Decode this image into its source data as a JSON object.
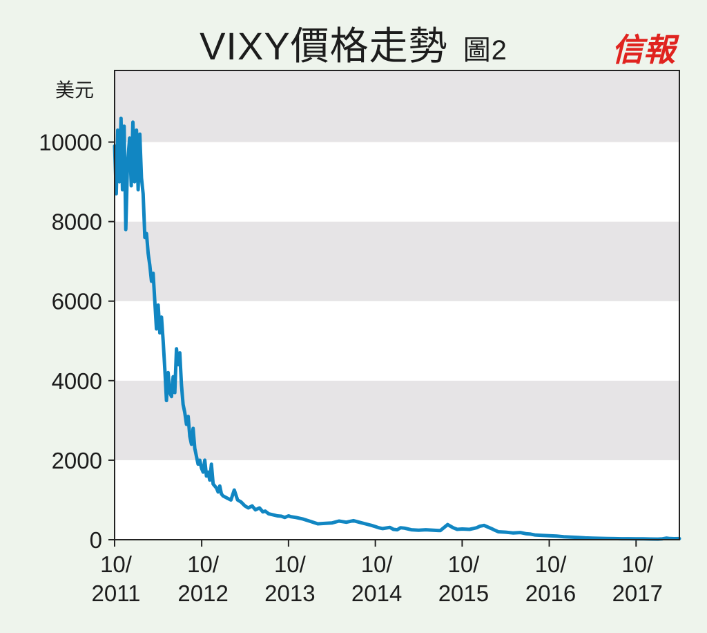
{
  "header": {
    "title": "VIXY價格走勢",
    "figure_label": "圖2",
    "logo_text": "信報"
  },
  "colors": {
    "background": "#eef4ec",
    "band_gray": "#e6e4e6",
    "band_white": "#ffffff",
    "line": "#1186c2",
    "logo": "#e0231f"
  },
  "chart_data": {
    "type": "line",
    "title": "VIXY價格走勢",
    "ylabel": "美元",
    "xlabel": "",
    "ylim": [
      0,
      11800
    ],
    "xlim": [
      "2011-10",
      "2018-04"
    ],
    "grid": false,
    "alternating_bands": true,
    "yticks": [
      0,
      2000,
      4000,
      6000,
      8000,
      10000
    ],
    "ytick_labels": [
      "0",
      "2000",
      "4000",
      "6000",
      "8000",
      "10000"
    ],
    "xticks": [
      "2011-10",
      "2012-10",
      "2013-10",
      "2014-10",
      "2015-10",
      "2016-10",
      "2017-10"
    ],
    "xtick_labels": [
      [
        "10/",
        "2011"
      ],
      [
        "10/",
        "2012"
      ],
      [
        "10/",
        "2013"
      ],
      [
        "10/",
        "2014"
      ],
      [
        "10/",
        "2015"
      ],
      [
        "10/",
        "2016"
      ],
      [
        "10/",
        "2017"
      ]
    ],
    "series": [
      {
        "x": [
          "2011-10-01",
          "2011-10-08",
          "2011-10-14",
          "2011-10-21",
          "2011-10-28",
          "2011-11-03",
          "2011-11-10",
          "2011-11-17",
          "2011-11-24",
          "2011-12-03",
          "2011-12-10",
          "2011-12-17",
          "2011-12-24",
          "2012-01-01",
          "2012-01-08",
          "2012-01-15",
          "2012-01-22",
          "2012-01-29",
          "2012-02-05",
          "2012-02-12",
          "2012-02-19",
          "2012-02-26",
          "2012-03-04",
          "2012-03-11",
          "2012-03-18",
          "2012-03-25",
          "2012-04-01",
          "2012-04-08",
          "2012-04-15",
          "2012-04-22",
          "2012-04-29",
          "2012-05-06",
          "2012-05-13",
          "2012-05-20",
          "2012-05-27",
          "2012-06-03",
          "2012-06-10",
          "2012-06-17",
          "2012-06-24",
          "2012-07-01",
          "2012-07-08",
          "2012-07-15",
          "2012-07-22",
          "2012-07-29",
          "2012-08-05",
          "2012-08-12",
          "2012-08-19",
          "2012-08-26",
          "2012-09-02",
          "2012-09-09",
          "2012-09-16",
          "2012-09-23",
          "2012-09-30",
          "2012-10-07",
          "2012-10-14",
          "2012-10-21",
          "2012-10-28",
          "2012-11-04",
          "2012-11-11",
          "2012-11-18",
          "2012-11-25",
          "2012-12-02",
          "2012-12-09",
          "2012-12-16",
          "2012-12-23",
          "2012-12-30",
          "2013-01-15",
          "2013-02-01",
          "2013-02-15",
          "2013-03-01",
          "2013-03-15",
          "2013-04-01",
          "2013-04-15",
          "2013-05-01",
          "2013-05-15",
          "2013-06-01",
          "2013-06-15",
          "2013-06-25",
          "2013-07-10",
          "2013-08-01",
          "2013-08-15",
          "2013-09-01",
          "2013-09-15",
          "2013-10-01",
          "2013-10-10",
          "2013-11-01",
          "2013-12-01",
          "2014-01-01",
          "2014-02-01",
          "2014-03-01",
          "2014-04-01",
          "2014-05-01",
          "2014-06-01",
          "2014-07-01",
          "2014-08-01",
          "2014-08-20",
          "2014-09-15",
          "2014-10-01",
          "2014-10-15",
          "2014-11-01",
          "2014-12-01",
          "2014-12-16",
          "2015-01-01",
          "2015-01-15",
          "2015-02-01",
          "2015-03-01",
          "2015-04-01",
          "2015-05-01",
          "2015-06-01",
          "2015-07-01",
          "2015-08-01",
          "2015-08-24",
          "2015-09-10",
          "2015-10-01",
          "2015-11-01",
          "2015-12-01",
          "2015-12-15",
          "2016-01-01",
          "2016-02-01",
          "2016-02-15",
          "2016-03-01",
          "2016-04-01",
          "2016-05-01",
          "2016-06-01",
          "2016-06-27",
          "2016-07-15",
          "2016-08-01",
          "2016-09-01",
          "2016-10-01",
          "2016-11-01",
          "2016-12-01",
          "2017-01-01",
          "2017-02-01",
          "2017-03-01",
          "2017-04-01",
          "2017-05-01",
          "2017-06-01",
          "2017-07-01",
          "2017-08-01",
          "2017-09-01",
          "2017-10-01",
          "2017-11-01",
          "2017-12-01",
          "2018-01-01",
          "2018-01-20",
          "2018-02-06",
          "2018-02-20",
          "2018-03-10",
          "2018-04-01"
        ],
        "values": [
          9900,
          8700,
          10300,
          9000,
          10600,
          8800,
          10400,
          7800,
          9400,
          10100,
          8900,
          10500,
          9000,
          10300,
          8800,
          10200,
          9100,
          8700,
          7600,
          7700,
          7200,
          6900,
          6500,
          6700,
          6000,
          5300,
          5900,
          5200,
          5600,
          5000,
          4300,
          3500,
          4200,
          3700,
          3600,
          4100,
          3700,
          4800,
          4400,
          4700,
          3900,
          3400,
          3200,
          2900,
          3100,
          2600,
          2400,
          2800,
          2300,
          2100,
          1900,
          2000,
          1800,
          1700,
          2000,
          1600,
          1700,
          1500,
          1900,
          1400,
          1350,
          1300,
          1200,
          1350,
          1150,
          1100,
          1050,
          1000,
          1250,
          1000,
          950,
          850,
          800,
          850,
          750,
          800,
          700,
          720,
          650,
          620,
          600,
          590,
          560,
          600,
          580,
          560,
          520,
          460,
          400,
          410,
          420,
          470,
          440,
          480,
          430,
          400,
          360,
          330,
          300,
          280,
          310,
          260,
          250,
          300,
          290,
          250,
          240,
          250,
          240,
          230,
          380,
          300,
          260,
          270,
          260,
          300,
          340,
          360,
          280,
          240,
          200,
          190,
          170,
          180,
          150,
          140,
          120,
          110,
          100,
          90,
          75,
          65,
          55,
          45,
          40,
          35,
          30,
          28,
          25,
          24,
          22,
          20,
          18,
          16,
          22,
          40,
          30,
          26,
          28
        ]
      }
    ]
  }
}
